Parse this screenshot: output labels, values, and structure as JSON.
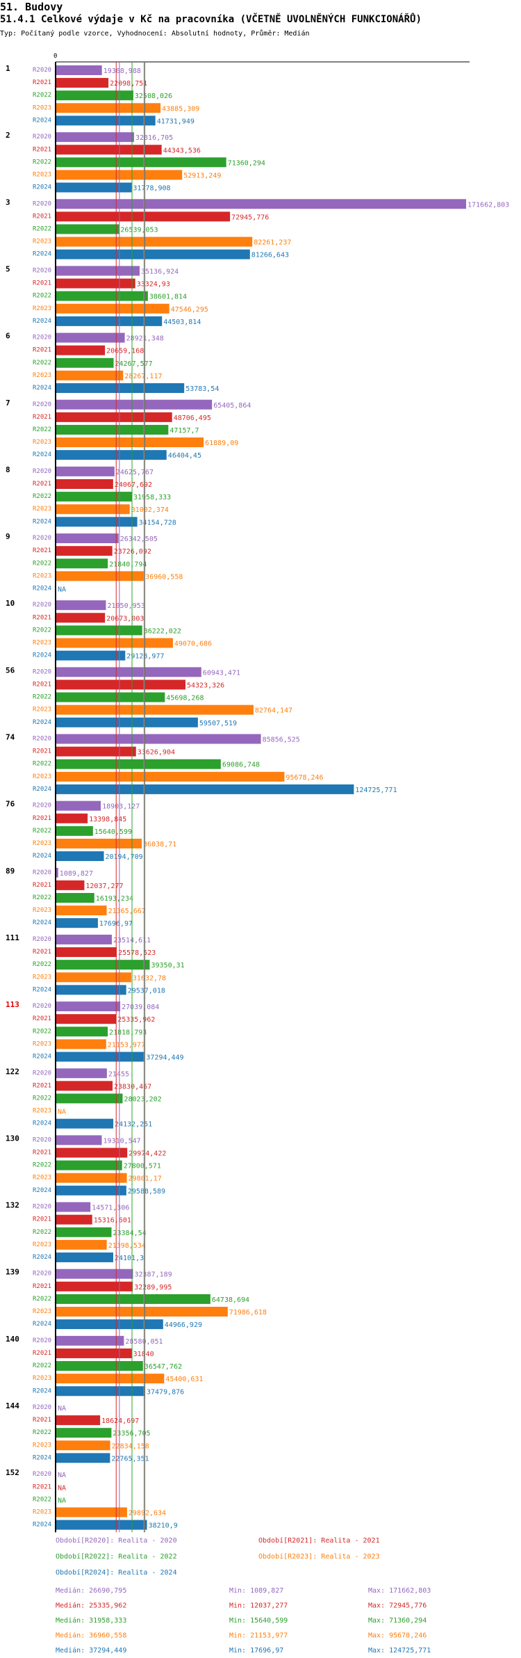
{
  "page": {
    "heading": "51. Budovy",
    "title": "51.4.1 Celkové výdaje v Kč na pracovníka (VČETNĚ UVOLNĚNÝCH FUNKCIONÁŘŮ)",
    "subtitle": "Typ: Počítaný podle vzorce, Vyhodnocení: Absolutní hodnoty, Průměr: Medián"
  },
  "chart_data": {
    "type": "bar",
    "orientation": "horizontal",
    "x_axis_zero_label": "0",
    "xlim": [
      0,
      171662.803
    ],
    "series_names": [
      "R2020",
      "R2021",
      "R2022",
      "R2023",
      "R2024"
    ],
    "colors": {
      "R2020": "#9467bd",
      "R2021": "#d62728",
      "R2022": "#2ca02c",
      "R2023": "#ff7f0e",
      "R2024": "#1f77b4",
      "highlight": "#e00000"
    },
    "na_label": "NA",
    "categories": [
      {
        "id": "1",
        "highlight": false,
        "values": [
          19368.988,
          22098.751,
          32508.026,
          43885.309,
          41731.949
        ],
        "labels": [
          "19368,988",
          "22098,751",
          "32508,026",
          "43885,309",
          "41731,949"
        ]
      },
      {
        "id": "2",
        "highlight": false,
        "values": [
          32816.705,
          44343.536,
          71360.294,
          52913.249,
          31778.908
        ],
        "labels": [
          "32816,705",
          "44343,536",
          "71360,294",
          "52913,249",
          "31778,908"
        ]
      },
      {
        "id": "3",
        "highlight": false,
        "values": [
          171662.803,
          72945.776,
          26539.053,
          82261.237,
          81266.643
        ],
        "labels": [
          "171662,803",
          "72945,776",
          "26539,053",
          "82261,237",
          "81266,643"
        ]
      },
      {
        "id": "5",
        "highlight": false,
        "values": [
          35136.924,
          33324.93,
          38601.814,
          47546.295,
          44503.814
        ],
        "labels": [
          "35136,924",
          "33324,93",
          "38601,814",
          "47546,295",
          "44503,814"
        ]
      },
      {
        "id": "6",
        "highlight": false,
        "values": [
          28921.348,
          20659.168,
          24267.577,
          28267.117,
          53783.54
        ],
        "labels": [
          "28921,348",
          "20659,168",
          "24267,577",
          "28267,117",
          "53783,54"
        ]
      },
      {
        "id": "7",
        "highlight": false,
        "values": [
          65405.864,
          48706.495,
          47157.7,
          61889.09,
          46404.45
        ],
        "labels": [
          "65405,864",
          "48706,495",
          "47157,7",
          "61889,09",
          "46404,45"
        ]
      },
      {
        "id": "8",
        "highlight": false,
        "values": [
          24625.767,
          24067.692,
          31958.333,
          31002.374,
          34154.728
        ],
        "labels": [
          "24625,767",
          "24067,692",
          "31958,333",
          "31002,374",
          "34154,728"
        ]
      },
      {
        "id": "9",
        "highlight": false,
        "values": [
          26342.505,
          23726.092,
          21840.794,
          36960.558,
          null
        ],
        "labels": [
          "26342,505",
          "23726,092",
          "21840,794",
          "36960,558",
          "NA"
        ]
      },
      {
        "id": "10",
        "highlight": false,
        "values": [
          21050.953,
          20673.003,
          36222.022,
          49070.686,
          29128.977
        ],
        "labels": [
          "21050,953",
          "20673,003",
          "36222,022",
          "49070,686",
          "29128,977"
        ]
      },
      {
        "id": "56",
        "highlight": false,
        "values": [
          60943.471,
          54323.326,
          45698.268,
          82764.147,
          59507.519
        ],
        "labels": [
          "60943,471",
          "54323,326",
          "45698,268",
          "82764,147",
          "59507,519"
        ]
      },
      {
        "id": "74",
        "highlight": false,
        "values": [
          85856.525,
          33626.904,
          69086.748,
          95678.246,
          124725.771
        ],
        "labels": [
          "85856,525",
          "33626,904",
          "69086,748",
          "95678,246",
          "124725,771"
        ]
      },
      {
        "id": "76",
        "highlight": false,
        "values": [
          18903.127,
          13398.845,
          15640.599,
          36038.71,
          20194.709
        ],
        "labels": [
          "18903,127",
          "13398,845",
          "15640,599",
          "36038,71",
          "20194,709"
        ]
      },
      {
        "id": "89",
        "highlight": false,
        "values": [
          1089.827,
          12037.277,
          16193.234,
          21365.667,
          17696.97
        ],
        "labels": [
          "1089,827",
          "12037,277",
          "16193,234",
          "21365,667",
          "17696,97"
        ]
      },
      {
        "id": "111",
        "highlight": false,
        "values": [
          23514.611,
          25578.523,
          39350.31,
          31632.78,
          29537.018
        ],
        "labels": [
          "23514,611",
          "25578,523",
          "39350,31",
          "31632,78",
          "29537,018"
        ]
      },
      {
        "id": "113",
        "highlight": true,
        "values": [
          27039.084,
          25335.962,
          21818.793,
          21153.977,
          37294.449
        ],
        "labels": [
          "27039,084",
          "25335,962",
          "21818,793",
          "21153,977",
          "37294,449"
        ]
      },
      {
        "id": "122",
        "highlight": false,
        "values": [
          21455,
          23830.467,
          28023.202,
          null,
          24132.251
        ],
        "labels": [
          "21455",
          "23830,467",
          "28023,202",
          "NA",
          "24132,251"
        ]
      },
      {
        "id": "130",
        "highlight": false,
        "values": [
          19310.547,
          29974.422,
          27800.571,
          29801.17,
          29588.589
        ],
        "labels": [
          "19310,547",
          "29974,422",
          "27800,571",
          "29801,17",
          "29588,589"
        ]
      },
      {
        "id": "132",
        "highlight": false,
        "values": [
          14571.306,
          15316.601,
          23384.54,
          21398.534,
          24101.3
        ],
        "labels": [
          "14571,306",
          "15316,601",
          "23384,54",
          "21398,534",
          "24101,3"
        ]
      },
      {
        "id": "139",
        "highlight": false,
        "values": [
          32387.189,
          32289.995,
          64738.694,
          71986.618,
          44966.929
        ],
        "labels": [
          "32387,189",
          "32289,995",
          "64738,694",
          "71986,618",
          "44966,929"
        ]
      },
      {
        "id": "140",
        "highlight": false,
        "values": [
          28580.051,
          31840,
          36547.762,
          45400.631,
          37479.876
        ],
        "labels": [
          "28580,051",
          "31840",
          "36547,762",
          "45400,631",
          "37479,876"
        ]
      },
      {
        "id": "144",
        "highlight": false,
        "values": [
          null,
          18624.697,
          23356.705,
          22834.158,
          22765.351
        ],
        "labels": [
          "NA",
          "18624,697",
          "23356,705",
          "22834,158",
          "22765,351"
        ]
      },
      {
        "id": "152",
        "highlight": false,
        "values": [
          null,
          null,
          null,
          29892.634,
          38210.9
        ],
        "labels": [
          "NA",
          "NA",
          "NA",
          "29892,634",
          "38210,9"
        ]
      }
    ],
    "medians": [
      26690.795,
      25335.962,
      31958.333,
      36960.558,
      37294.449
    ],
    "legend": [
      "Období[R2020]: Realita - 2020",
      "Období[R2021]: Realita - 2021",
      "Období[R2022]: Realita - 2022",
      "Období[R2023]: Realita - 2023",
      "Období[R2024]: Realita - 2024"
    ],
    "stats": [
      {
        "median": "Medián: 26690,795",
        "min": "Min: 1089,827",
        "max": "Max: 171662,803"
      },
      {
        "median": "Medián: 25335,962",
        "min": "Min: 12037,277",
        "max": "Max: 72945,776"
      },
      {
        "median": "Medián: 31958,333",
        "min": "Min: 15640,599",
        "max": "Max: 71360,294"
      },
      {
        "median": "Medián: 36960,558",
        "min": "Min: 21153,977",
        "max": "Max: 95678,246"
      },
      {
        "median": "Medián: 37294,449",
        "min": "Min: 17696,97",
        "max": "Max: 124725,771"
      }
    ]
  }
}
